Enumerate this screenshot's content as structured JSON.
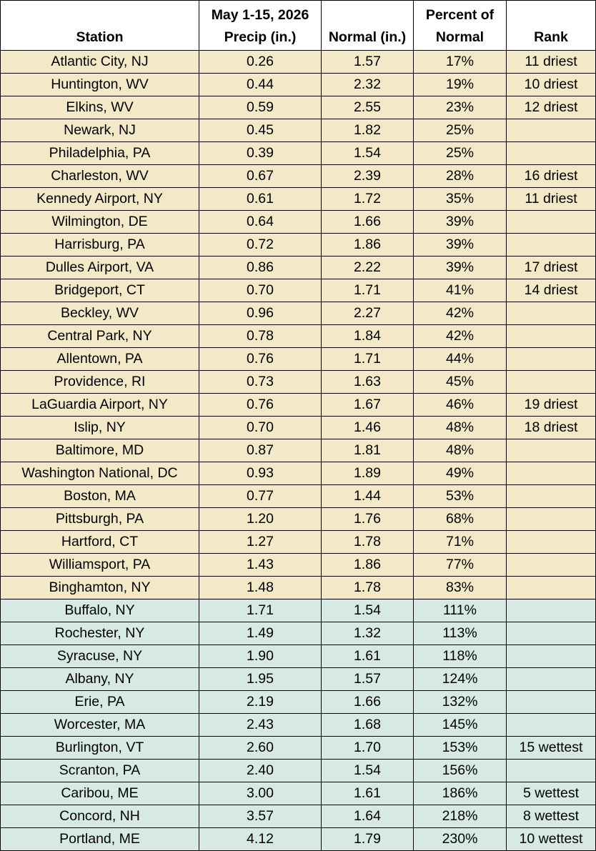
{
  "colors": {
    "dry_row": "#f3e9c8",
    "wet_row": "#d6e9e4"
  },
  "headers": {
    "station": "Station",
    "precip_line1": "May 1-15, 2026",
    "precip_line2": "Precip (in.)",
    "normal": "Normal (in.)",
    "percent_line1": "Percent of",
    "percent_line2": "Normal",
    "rank": "Rank"
  },
  "rows": [
    {
      "station": "Atlantic City, NJ",
      "precip": "0.26",
      "normal": "1.57",
      "percent": "17%",
      "rank": "11 driest",
      "group": "dry"
    },
    {
      "station": "Huntington, WV",
      "precip": "0.44",
      "normal": "2.32",
      "percent": "19%",
      "rank": "10 driest",
      "group": "dry"
    },
    {
      "station": "Elkins, WV",
      "precip": "0.59",
      "normal": "2.55",
      "percent": "23%",
      "rank": "12 driest",
      "group": "dry"
    },
    {
      "station": "Newark, NJ",
      "precip": "0.45",
      "normal": "1.82",
      "percent": "25%",
      "rank": "",
      "group": "dry"
    },
    {
      "station": "Philadelphia, PA",
      "precip": "0.39",
      "normal": "1.54",
      "percent": "25%",
      "rank": "",
      "group": "dry"
    },
    {
      "station": "Charleston, WV",
      "precip": "0.67",
      "normal": "2.39",
      "percent": "28%",
      "rank": "16 driest",
      "group": "dry"
    },
    {
      "station": "Kennedy Airport, NY",
      "precip": "0.61",
      "normal": "1.72",
      "percent": "35%",
      "rank": "11 driest",
      "group": "dry"
    },
    {
      "station": "Wilmington, DE",
      "precip": "0.64",
      "normal": "1.66",
      "percent": "39%",
      "rank": "",
      "group": "dry"
    },
    {
      "station": "Harrisburg, PA",
      "precip": "0.72",
      "normal": "1.86",
      "percent": "39%",
      "rank": "",
      "group": "dry"
    },
    {
      "station": "Dulles Airport, VA",
      "precip": "0.86",
      "normal": "2.22",
      "percent": "39%",
      "rank": "17 driest",
      "group": "dry"
    },
    {
      "station": "Bridgeport, CT",
      "precip": "0.70",
      "normal": "1.71",
      "percent": "41%",
      "rank": "14 driest",
      "group": "dry"
    },
    {
      "station": "Beckley, WV",
      "precip": "0.96",
      "normal": "2.27",
      "percent": "42%",
      "rank": "",
      "group": "dry"
    },
    {
      "station": "Central Park, NY",
      "precip": "0.78",
      "normal": "1.84",
      "percent": "42%",
      "rank": "",
      "group": "dry"
    },
    {
      "station": "Allentown, PA",
      "precip": "0.76",
      "normal": "1.71",
      "percent": "44%",
      "rank": "",
      "group": "dry"
    },
    {
      "station": "Providence, RI",
      "precip": "0.73",
      "normal": "1.63",
      "percent": "45%",
      "rank": "",
      "group": "dry"
    },
    {
      "station": "LaGuardia Airport, NY",
      "precip": "0.76",
      "normal": "1.67",
      "percent": "46%",
      "rank": "19 driest",
      "group": "dry"
    },
    {
      "station": "Islip, NY",
      "precip": "0.70",
      "normal": "1.46",
      "percent": "48%",
      "rank": "18 driest",
      "group": "dry"
    },
    {
      "station": "Baltimore, MD",
      "precip": "0.87",
      "normal": "1.81",
      "percent": "48%",
      "rank": "",
      "group": "dry"
    },
    {
      "station": "Washington National, DC",
      "precip": "0.93",
      "normal": "1.89",
      "percent": "49%",
      "rank": "",
      "group": "dry"
    },
    {
      "station": "Boston, MA",
      "precip": "0.77",
      "normal": "1.44",
      "percent": "53%",
      "rank": "",
      "group": "dry"
    },
    {
      "station": "Pittsburgh, PA",
      "precip": "1.20",
      "normal": "1.76",
      "percent": "68%",
      "rank": "",
      "group": "dry"
    },
    {
      "station": "Hartford, CT",
      "precip": "1.27",
      "normal": "1.78",
      "percent": "71%",
      "rank": "",
      "group": "dry"
    },
    {
      "station": "Williamsport, PA",
      "precip": "1.43",
      "normal": "1.86",
      "percent": "77%",
      "rank": "",
      "group": "dry"
    },
    {
      "station": "Binghamton, NY",
      "precip": "1.48",
      "normal": "1.78",
      "percent": "83%",
      "rank": "",
      "group": "dry"
    },
    {
      "station": "Buffalo, NY",
      "precip": "1.71",
      "normal": "1.54",
      "percent": "111%",
      "rank": "",
      "group": "wet"
    },
    {
      "station": "Rochester, NY",
      "precip": "1.49",
      "normal": "1.32",
      "percent": "113%",
      "rank": "",
      "group": "wet"
    },
    {
      "station": "Syracuse, NY",
      "precip": "1.90",
      "normal": "1.61",
      "percent": "118%",
      "rank": "",
      "group": "wet"
    },
    {
      "station": "Albany, NY",
      "precip": "1.95",
      "normal": "1.57",
      "percent": "124%",
      "rank": "",
      "group": "wet"
    },
    {
      "station": "Erie, PA",
      "precip": "2.19",
      "normal": "1.66",
      "percent": "132%",
      "rank": "",
      "group": "wet"
    },
    {
      "station": "Worcester, MA",
      "precip": "2.43",
      "normal": "1.68",
      "percent": "145%",
      "rank": "",
      "group": "wet"
    },
    {
      "station": "Burlington, VT",
      "precip": "2.60",
      "normal": "1.70",
      "percent": "153%",
      "rank": "15 wettest",
      "group": "wet"
    },
    {
      "station": "Scranton, PA",
      "precip": "2.40",
      "normal": "1.54",
      "percent": "156%",
      "rank": "",
      "group": "wet"
    },
    {
      "station": "Caribou, ME",
      "precip": "3.00",
      "normal": "1.61",
      "percent": "186%",
      "rank": "5 wettest",
      "group": "wet"
    },
    {
      "station": "Concord, NH",
      "precip": "3.57",
      "normal": "1.64",
      "percent": "218%",
      "rank": "8 wettest",
      "group": "wet"
    },
    {
      "station": "Portland, ME",
      "precip": "4.12",
      "normal": "1.79",
      "percent": "230%",
      "rank": "10 wettest",
      "group": "wet"
    }
  ]
}
